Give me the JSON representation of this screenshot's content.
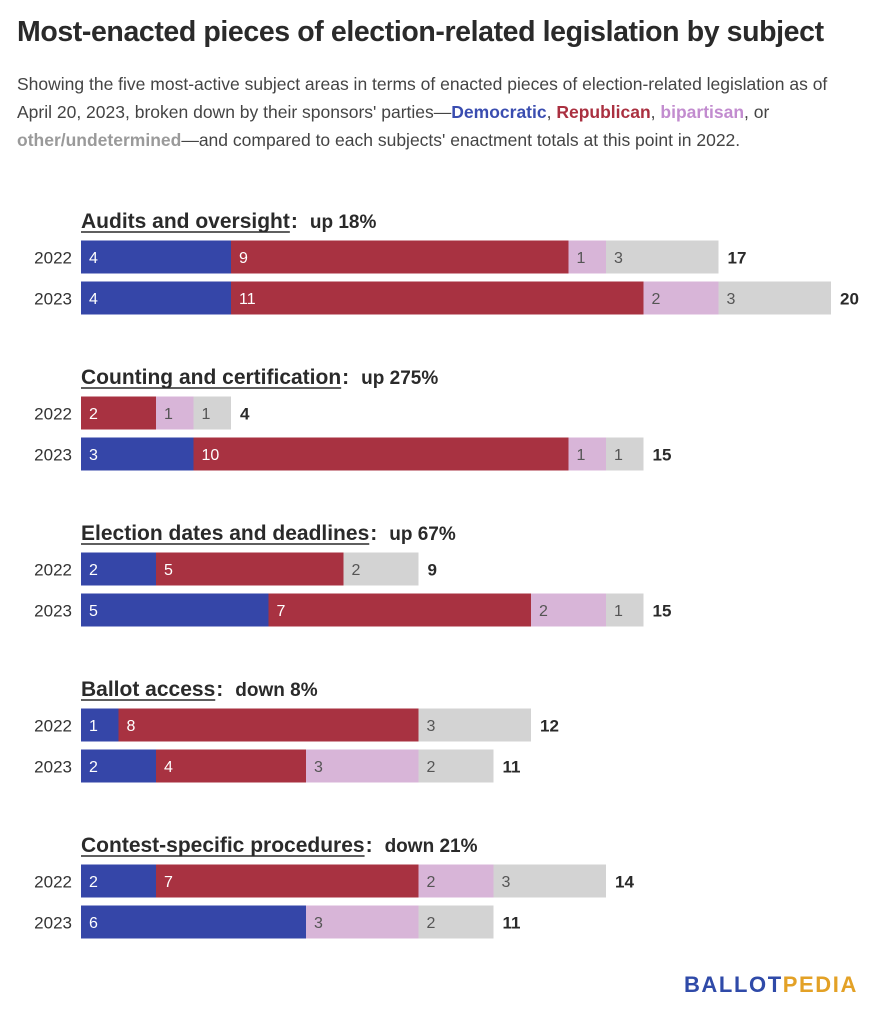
{
  "title": "Most-enacted pieces of election-related legislation by subject",
  "subtitle": {
    "part1": "Showing the five most-active subject areas in terms of enacted pieces of election-related legislation as of April 20, 2023, broken down by their sponsors' parties—",
    "dem": "Democratic",
    "sep1": ", ",
    "rep": "Republican",
    "sep2": ", ",
    "bip": "bipartisan",
    "sep3": ", or ",
    "oth": "other/undetermined",
    "part2": "—and compared to each subjects' enactment totals at this point in 2022."
  },
  "logo": {
    "ballot": "BALLOT",
    "pedia": "PEDIA"
  },
  "colors": {
    "Democratic": "#3546a8",
    "Republican": "#a83241",
    "bipartisan": "#d8b5d8",
    "other": "#d3d3d3"
  },
  "chart_data": {
    "type": "bar",
    "orientation": "horizontal-stacked",
    "series_order": [
      "Democratic",
      "Republican",
      "bipartisan",
      "other"
    ],
    "groups": [
      {
        "subject": "Audits and oversight",
        "change": "up 18%",
        "rows": [
          {
            "year": "2022",
            "values": [
              4,
              9,
              1,
              3
            ],
            "total": 17
          },
          {
            "year": "2023",
            "values": [
              4,
              11,
              2,
              3
            ],
            "total": 20
          }
        ]
      },
      {
        "subject": "Counting and certification",
        "change": "up 275%",
        "rows": [
          {
            "year": "2022",
            "values": [
              0,
              2,
              1,
              1
            ],
            "total": 4
          },
          {
            "year": "2023",
            "values": [
              3,
              10,
              1,
              1
            ],
            "total": 15
          }
        ]
      },
      {
        "subject": "Election dates and deadlines",
        "change": "up 67%",
        "rows": [
          {
            "year": "2022",
            "values": [
              2,
              5,
              0,
              2
            ],
            "total": 9
          },
          {
            "year": "2023",
            "values": [
              5,
              7,
              2,
              1
            ],
            "total": 15
          }
        ]
      },
      {
        "subject": "Ballot access",
        "change": "down 8%",
        "rows": [
          {
            "year": "2022",
            "values": [
              1,
              8,
              0,
              3
            ],
            "total": 12
          },
          {
            "year": "2023",
            "values": [
              2,
              4,
              3,
              2
            ],
            "total": 11
          }
        ]
      },
      {
        "subject": "Contest-specific procedures",
        "change": "down 21%",
        "rows": [
          {
            "year": "2022",
            "values": [
              2,
              7,
              2,
              3
            ],
            "total": 14
          },
          {
            "year": "2023",
            "values": [
              6,
              0,
              3,
              2
            ],
            "total": 11
          }
        ]
      }
    ]
  }
}
